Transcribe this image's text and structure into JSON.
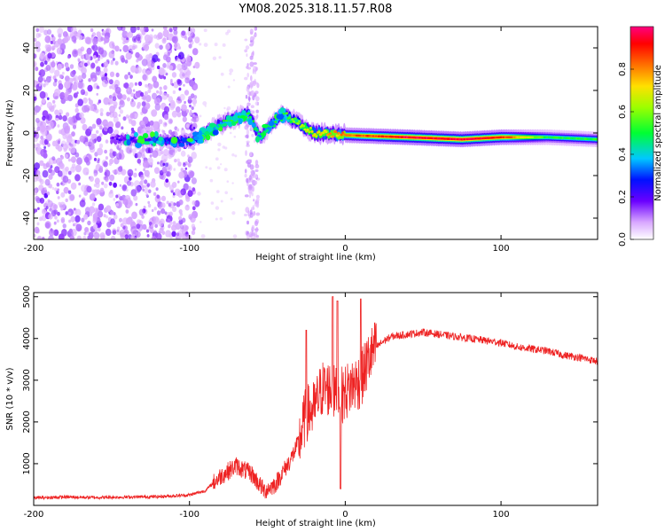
{
  "title": "YM08.2025.318.11.57.R08",
  "chart_data": [
    {
      "type": "heatmap",
      "xlabel": "Height of straight line (km)",
      "ylabel": "Frequency (Hz)",
      "xlim": [
        -200,
        162
      ],
      "ylim": [
        -50,
        50
      ],
      "xticks": [
        "-200",
        "-100",
        "0",
        "100"
      ],
      "xtick_values": [
        -200,
        -100,
        0,
        100
      ],
      "yticks": [
        "40",
        "20",
        "0",
        "-20",
        "-40"
      ],
      "ytick_values": [
        40,
        20,
        0,
        -20,
        -40
      ],
      "colorbar": {
        "label": "Normalized spectral amplitude",
        "range": [
          0,
          1
        ],
        "ticks": [
          "0.0",
          "0.2",
          "0.4",
          "0.6",
          "0.8"
        ],
        "tick_values": [
          0,
          0.2,
          0.4,
          0.6,
          0.8
        ]
      },
      "ridge": {
        "description_points": [
          {
            "x": -145,
            "f": -3,
            "amp": 0.2
          },
          {
            "x": -100,
            "f": -4,
            "amp": 0.3
          },
          {
            "x": -90,
            "f": 0,
            "amp": 0.45
          },
          {
            "x": -75,
            "f": 6,
            "amp": 0.5
          },
          {
            "x": -62,
            "f": 9,
            "amp": 0.5
          },
          {
            "x": -55,
            "f": -2,
            "amp": 0.45
          },
          {
            "x": -40,
            "f": 9,
            "amp": 0.5
          },
          {
            "x": -20,
            "f": 0,
            "amp": 0.7
          },
          {
            "x": 0,
            "f": -1,
            "amp": 0.8
          },
          {
            "x": 40,
            "f": -2,
            "amp": 0.95
          },
          {
            "x": 75,
            "f": -3,
            "amp": 0.95
          },
          {
            "x": 100,
            "f": -2,
            "amp": 0.9
          },
          {
            "x": 130,
            "f": -2,
            "amp": 0.5
          },
          {
            "x": 162,
            "f": -3,
            "amp": 0.5
          }
        ]
      }
    },
    {
      "type": "line",
      "xlabel": "Height of straight line (km)",
      "ylabel": "SNR (10 * v/v)",
      "xlim": [
        -200,
        162
      ],
      "ylim": [
        0,
        5100
      ],
      "xticks": [
        "-200",
        "-100",
        "0",
        "100"
      ],
      "xtick_values": [
        -200,
        -100,
        0,
        100
      ],
      "yticks": [
        "5000",
        "4000",
        "3000",
        "2000",
        "1000"
      ],
      "ytick_values": [
        5000,
        4000,
        3000,
        2000,
        1000
      ],
      "color": "#ee2222",
      "series": [
        {
          "name": "SNR",
          "x": [
            -200,
            -180,
            -160,
            -140,
            -120,
            -100,
            -90,
            -80,
            -70,
            -60,
            -52,
            -45,
            -40,
            -35,
            -30,
            -25,
            -20,
            -15,
            -10,
            -5,
            0,
            5,
            10,
            15,
            20,
            25,
            30,
            40,
            50,
            60,
            70,
            80,
            90,
            100,
            110,
            120,
            130,
            140,
            150,
            162
          ],
          "values": [
            180,
            200,
            190,
            200,
            210,
            250,
            350,
            700,
            950,
            750,
            350,
            500,
            800,
            1100,
            1500,
            2200,
            2300,
            2800,
            2800,
            2600,
            2700,
            2900,
            3000,
            3500,
            3800,
            3950,
            4050,
            4100,
            4150,
            4100,
            4050,
            4000,
            3950,
            3900,
            3800,
            3750,
            3700,
            3600,
            3550,
            3450
          ],
          "spikes": [
            {
              "x": -8,
              "y": 5000
            },
            {
              "x": -5,
              "y": 4900
            },
            {
              "x": 10,
              "y": 4950
            },
            {
              "x": -25,
              "y": 4200
            },
            {
              "x": -3,
              "y": 400
            }
          ]
        }
      ]
    }
  ]
}
